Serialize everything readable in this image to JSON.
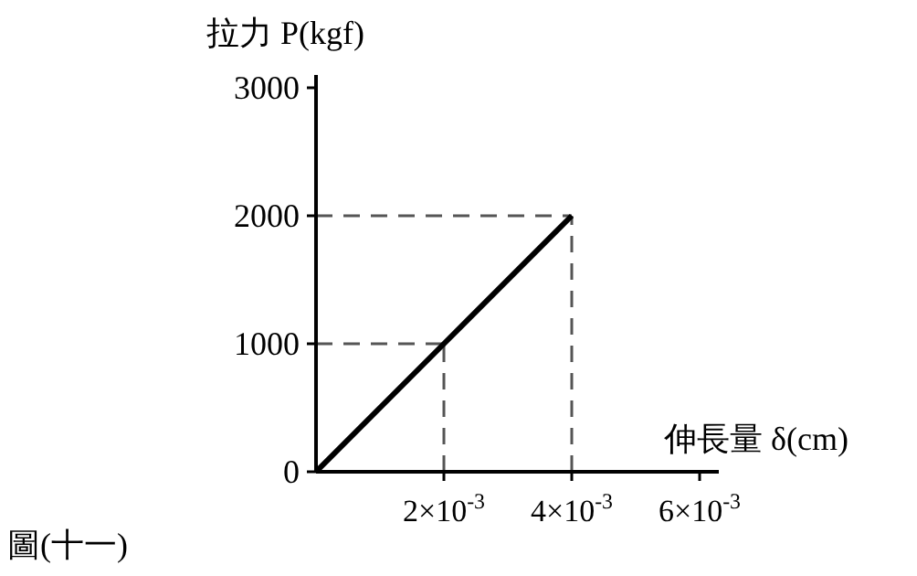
{
  "chart_data": {
    "type": "line",
    "xlabel": "伸長量 δ(cm)",
    "ylabel": "拉力 P(kgf)",
    "annotations": [
      "圖(十一)"
    ],
    "x": [
      0,
      0.002,
      0.004
    ],
    "series": [
      {
        "color": "#000000",
        "values": [
          0,
          1000,
          2000
        ]
      }
    ],
    "xlim": [
      0,
      0.0063
    ],
    "ylim": [
      0,
      3100
    ],
    "xticks": [
      {
        "value": 0.002,
        "label": "2×10$^{-3}$"
      },
      {
        "value": 0.004,
        "label": "4×10$^{-3}$"
      },
      {
        "value": 0.006,
        "label": "6×10$^{-3}$"
      }
    ],
    "yticks": [
      0,
      1000,
      2000,
      3000
    ],
    "ref_lines": [
      {
        "axis": "y",
        "value": 1000,
        "color": "#555555",
        "line_style": "dashed"
      },
      {
        "axis": "y",
        "value": 2000,
        "color": "#555555",
        "line_style": "dashed"
      },
      {
        "axis": "x",
        "value": 0.002,
        "color": "#555555",
        "line_style": "dashed"
      },
      {
        "axis": "x",
        "value": 0.004,
        "color": "#555555",
        "line_style": "dashed"
      }
    ],
    "marker": "none",
    "line_style": "solid",
    "grid": false
  }
}
